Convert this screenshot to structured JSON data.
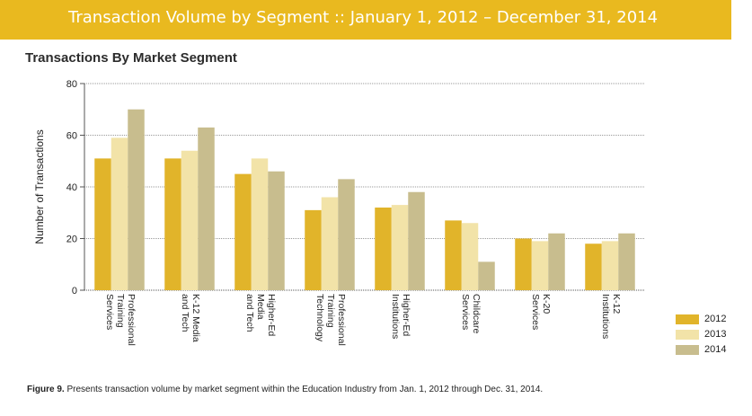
{
  "banner": {
    "title": "Transaction Volume by Segment :: January 1, 2012 – December 31, 2014"
  },
  "chart_title": "Transactions By Market Segment",
  "caption": {
    "label": "Figure 9.",
    "text": "Presents transaction volume by market segment within the Education Industry from Jan. 1, 2012 through Dec. 31, 2014."
  },
  "colors": {
    "banner": "#e9b91f",
    "s2012": "#e1b42a",
    "s2013": "#f2e3a8",
    "s2014": "#c8bd8e"
  },
  "chart_data": {
    "type": "bar",
    "title": "Transactions By Market Segment",
    "xlabel": "",
    "ylabel": "Number of Transactions",
    "ylim": [
      0,
      80
    ],
    "yticks": [
      0,
      20,
      40,
      60,
      80
    ],
    "grid": true,
    "legend": "bottom-right",
    "categories": [
      [
        "Professional",
        "Training",
        "Services"
      ],
      [
        "K-12 Media",
        "and Tech"
      ],
      [
        "Higher-Ed",
        "Media",
        "and Tech"
      ],
      [
        "Professional",
        "Training",
        "Technology"
      ],
      [
        "Higher-Ed",
        "Institutions"
      ],
      [
        "Childcare",
        "Services"
      ],
      [
        "K-20",
        "Services"
      ],
      [
        "K-12",
        "Institutions"
      ]
    ],
    "series": [
      {
        "name": "2012",
        "color": "#e1b42a",
        "values": [
          51,
          51,
          45,
          31,
          32,
          27,
          20,
          18
        ]
      },
      {
        "name": "2013",
        "color": "#f2e3a8",
        "values": [
          59,
          54,
          51,
          36,
          33,
          26,
          19,
          19
        ]
      },
      {
        "name": "2014",
        "color": "#c8bd8e",
        "values": [
          70,
          63,
          46,
          43,
          38,
          11,
          22,
          22
        ]
      }
    ]
  }
}
